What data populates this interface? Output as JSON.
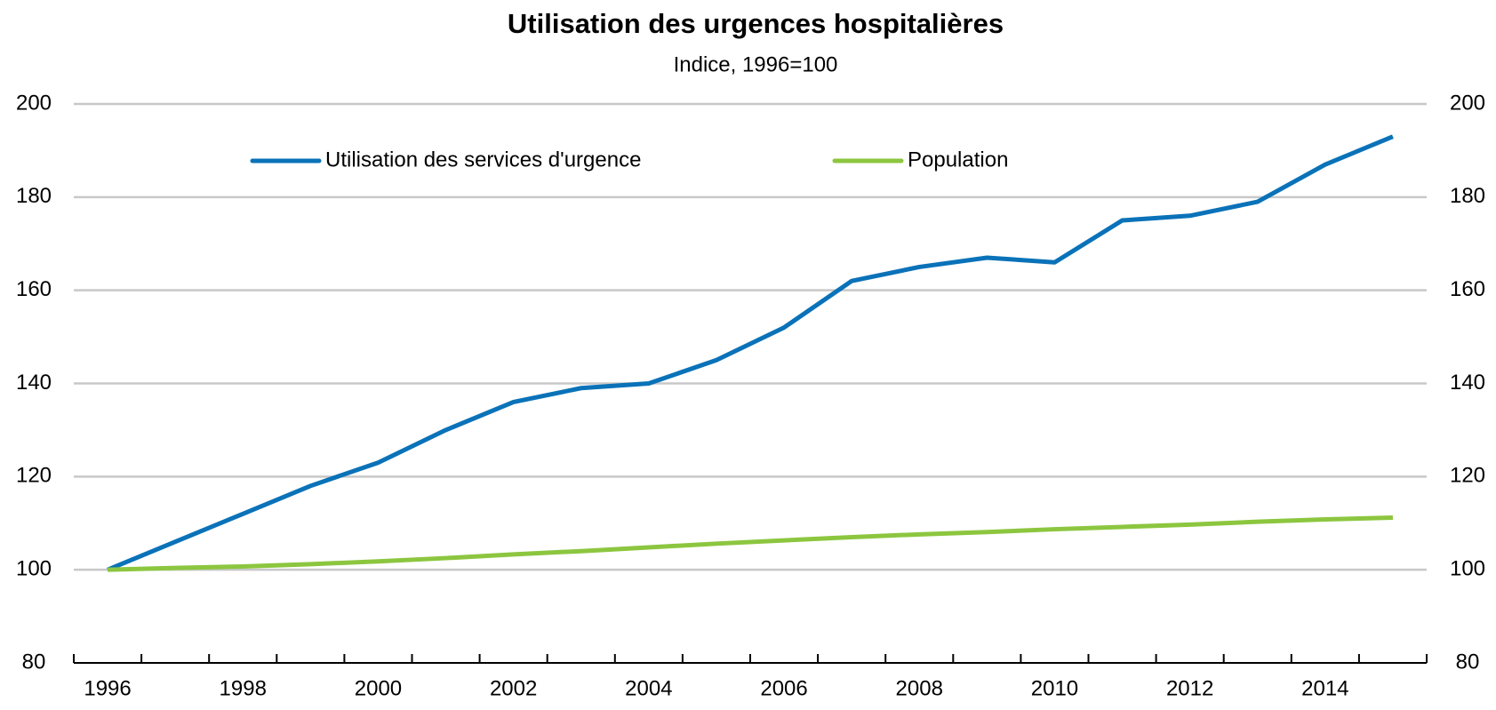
{
  "chart_data": {
    "type": "line",
    "title": "Utilisation des urgences hospitalières",
    "subtitle": "Indice, 1996=100",
    "categories": [
      "1996",
      null,
      "1998",
      null,
      "2000",
      null,
      "2002",
      null,
      "2004",
      null,
      "2006",
      null,
      "2008",
      null,
      "2010",
      null,
      "2012",
      null,
      "2014",
      null
    ],
    "series": [
      {
        "name": "Utilisation des services d'urgence",
        "color": "#0a72b8",
        "values": [
          100,
          106,
          112,
          118,
          123,
          130,
          136,
          139,
          140,
          145,
          152,
          162,
          165,
          167,
          166,
          175,
          176,
          179,
          187,
          193
        ]
      },
      {
        "name": "Population",
        "color": "#8cc63f",
        "values": [
          100,
          100.4,
          100.7,
          101.2,
          101.8,
          102.5,
          103.3,
          104,
          104.8,
          105.6,
          106.3,
          107,
          107.6,
          108.1,
          108.7,
          109.2,
          109.7,
          110.3,
          110.8,
          111.2
        ]
      }
    ],
    "ylim": [
      80,
      200
    ],
    "yticks": [
      80,
      100,
      120,
      140,
      160,
      180,
      200
    ],
    "y2lim": [
      80,
      200
    ],
    "y2ticks": [
      80,
      100,
      120,
      140,
      160,
      180,
      200
    ],
    "grid": true,
    "legend": "top"
  }
}
